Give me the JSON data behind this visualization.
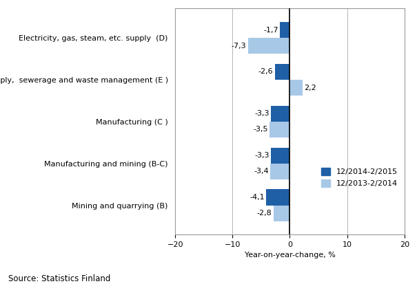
{
  "categories": [
    "Mining and quarrying (B)",
    "Manufacturing and mining (B-C)",
    "Manufacturing (C )",
    "Water supply,  sewerage and waste management (E )",
    "Electricity, gas, steam, etc. supply  (D)"
  ],
  "series1_label": "12/2014-2/2015",
  "series2_label": "12/2013-2/2014",
  "series1_values": [
    -4.1,
    -3.3,
    -3.3,
    -2.6,
    -1.7
  ],
  "series2_values": [
    -2.8,
    -3.4,
    -3.5,
    2.2,
    -7.3
  ],
  "series1_color": "#1F5FA6",
  "series2_color": "#A8C8E8",
  "xlim": [
    -20,
    20
  ],
  "xticks": [
    -20,
    -10,
    0,
    10,
    20
  ],
  "xlabel": "Year-on-year-change, %",
  "source": "Source: Statistics Finland",
  "bar_height": 0.38,
  "label_fontsize": 8,
  "tick_fontsize": 8,
  "source_fontsize": 8.5
}
